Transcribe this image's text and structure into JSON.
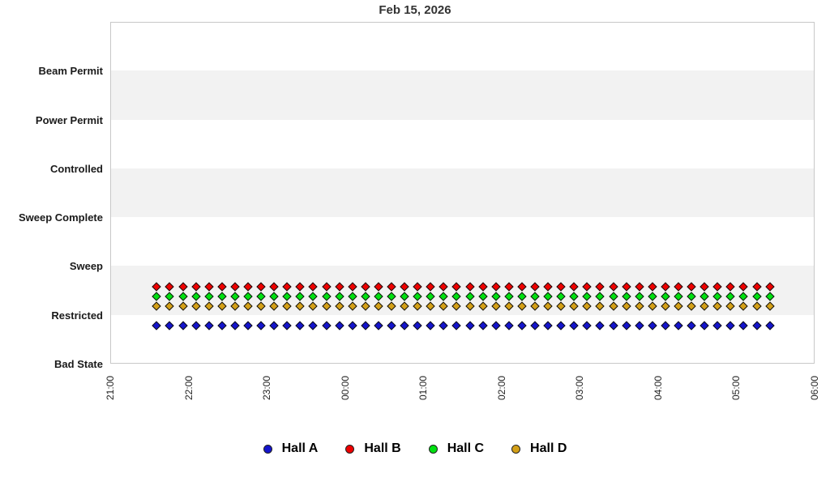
{
  "chart_data": {
    "type": "scatter",
    "title": "Feb 15, 2026",
    "xlabel": "",
    "ylabel": "",
    "y_categories": [
      "Bad State",
      "Restricted",
      "Sweep",
      "Sweep Complete",
      "Controlled",
      "Power Permit",
      "Beam Permit"
    ],
    "x_tick_labels": [
      "21:00",
      "22:00",
      "23:00",
      "00:00",
      "01:00",
      "02:00",
      "03:00",
      "04:00",
      "05:00",
      "06:00"
    ],
    "x_axis_start": "21:00",
    "x_axis_span_hours": 9,
    "grid": "alternating horizontal category bands",
    "band_color": "#f2f2f2",
    "legend_position": "bottom",
    "marker_shape": "diamond",
    "sample_interval_minutes": 10,
    "sample_times": [
      "21:35",
      "21:45",
      "21:55",
      "22:05",
      "22:15",
      "22:25",
      "22:35",
      "22:45",
      "22:55",
      "23:05",
      "23:15",
      "23:25",
      "23:35",
      "23:45",
      "23:55",
      "00:05",
      "00:15",
      "00:25",
      "00:35",
      "00:45",
      "00:55",
      "01:05",
      "01:15",
      "01:25",
      "01:35",
      "01:45",
      "01:55",
      "02:05",
      "02:15",
      "02:25",
      "02:35",
      "02:45",
      "02:55",
      "03:05",
      "03:15",
      "03:25",
      "03:35",
      "03:45",
      "03:55",
      "04:05",
      "04:15",
      "04:25",
      "04:35",
      "04:45",
      "04:55",
      "05:05",
      "05:15",
      "05:25"
    ],
    "series": [
      {
        "name": "Hall A",
        "color": "#1414cc",
        "state_all_samples": "Restricted",
        "display_offset": -0.2,
        "samples": 48
      },
      {
        "name": "Hall B",
        "color": "#ee0000",
        "state_all_samples": "Restricted",
        "display_offset": 0.6,
        "samples": 48
      },
      {
        "name": "Hall C",
        "color": "#00e011",
        "state_all_samples": "Restricted",
        "display_offset": 0.4,
        "samples": 48
      },
      {
        "name": "Hall D",
        "color": "#d4a017",
        "state_all_samples": "Restricted",
        "display_offset": 0.2,
        "samples": 48
      }
    ]
  }
}
